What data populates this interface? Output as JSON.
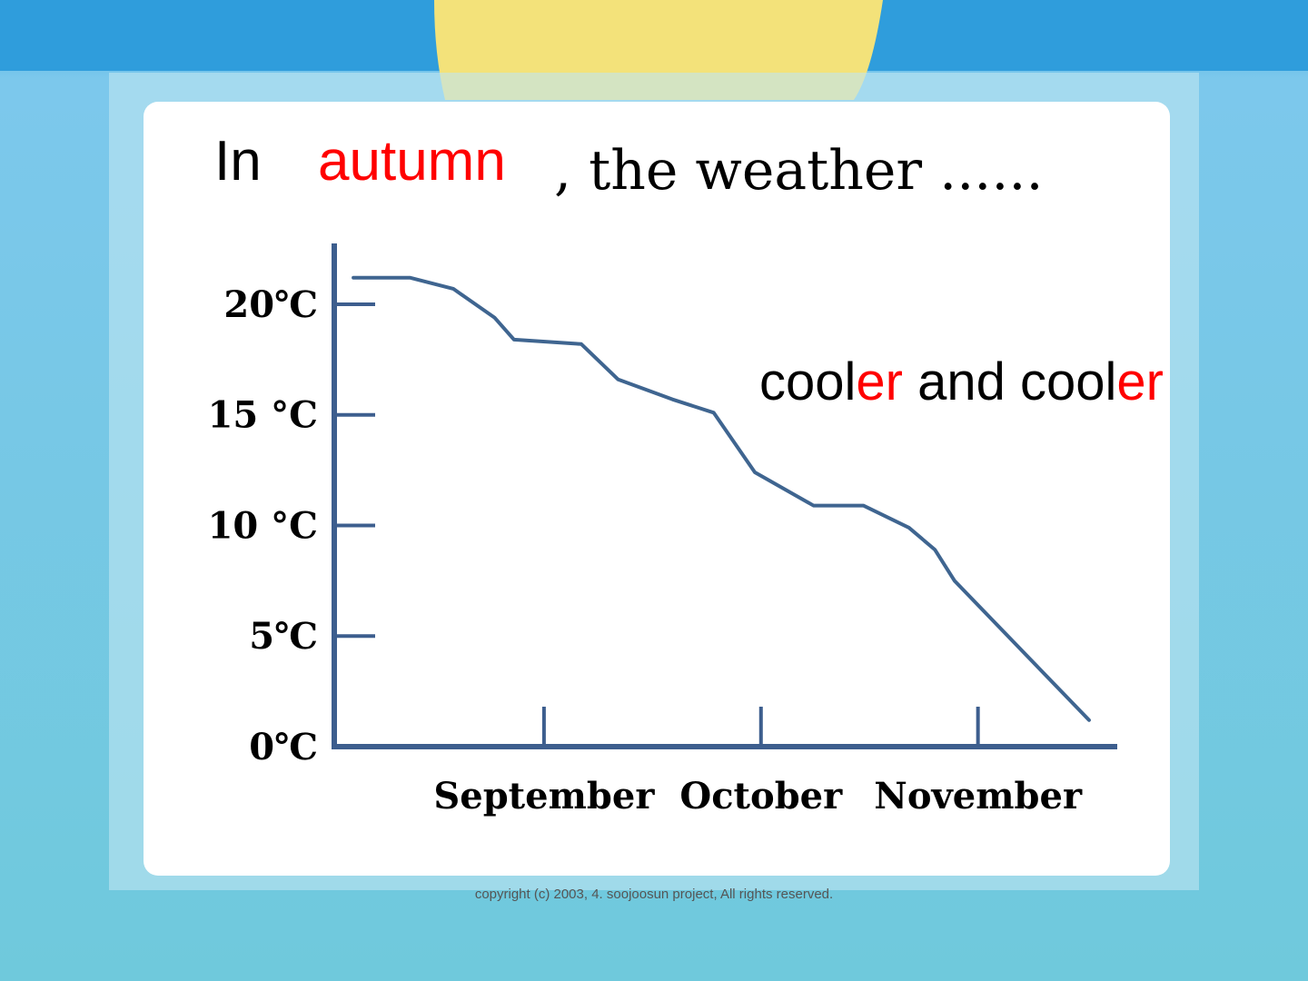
{
  "chart_data": {
    "type": "line",
    "title_parts": [
      {
        "text": "In",
        "color": "#000000"
      },
      {
        "text": "autumn",
        "color": "#ff0000"
      },
      {
        "text": ", the weather ......",
        "color": "#000000"
      }
    ],
    "annotation_parts": [
      {
        "text": "cool",
        "color": "#000000"
      },
      {
        "text": "er",
        "color": "#ff0000"
      },
      {
        "text": " and cool",
        "color": "#000000"
      },
      {
        "text": "er",
        "color": "#ff0000"
      }
    ],
    "x": [
      0.08,
      0.34,
      0.54,
      0.73,
      0.82,
      1.13,
      1.3,
      1.55,
      1.74,
      1.93,
      2.2,
      2.43,
      2.64,
      2.76,
      2.85,
      3.47
    ],
    "series": [
      {
        "color": "#3f6590",
        "values": [
          21.2,
          21.2,
          20.7,
          19.4,
          18.4,
          18.2,
          16.6,
          15.7,
          15.1,
          12.4,
          10.9,
          10.9,
          9.9,
          8.9,
          7.5,
          1.2
        ]
      }
    ],
    "xlim": [
      0,
      3.6
    ],
    "xticks": [
      {
        "value": 1,
        "label": "September"
      },
      {
        "value": 2,
        "label": "October"
      },
      {
        "value": 3,
        "label": "November"
      }
    ],
    "ylim": [
      0,
      22.75
    ],
    "yticks": [
      {
        "value": 0,
        "label": "0℃"
      },
      {
        "value": 5,
        "label": "5℃"
      },
      {
        "value": 10,
        "label": "10 °C"
      },
      {
        "value": 15,
        "label": "15 °C"
      },
      {
        "value": 20,
        "label": "20℃"
      }
    ],
    "axis_color": "#3d5e8e"
  },
  "footer": "copyright (c) 2003, 4. soojoosun project, All rights reserved."
}
